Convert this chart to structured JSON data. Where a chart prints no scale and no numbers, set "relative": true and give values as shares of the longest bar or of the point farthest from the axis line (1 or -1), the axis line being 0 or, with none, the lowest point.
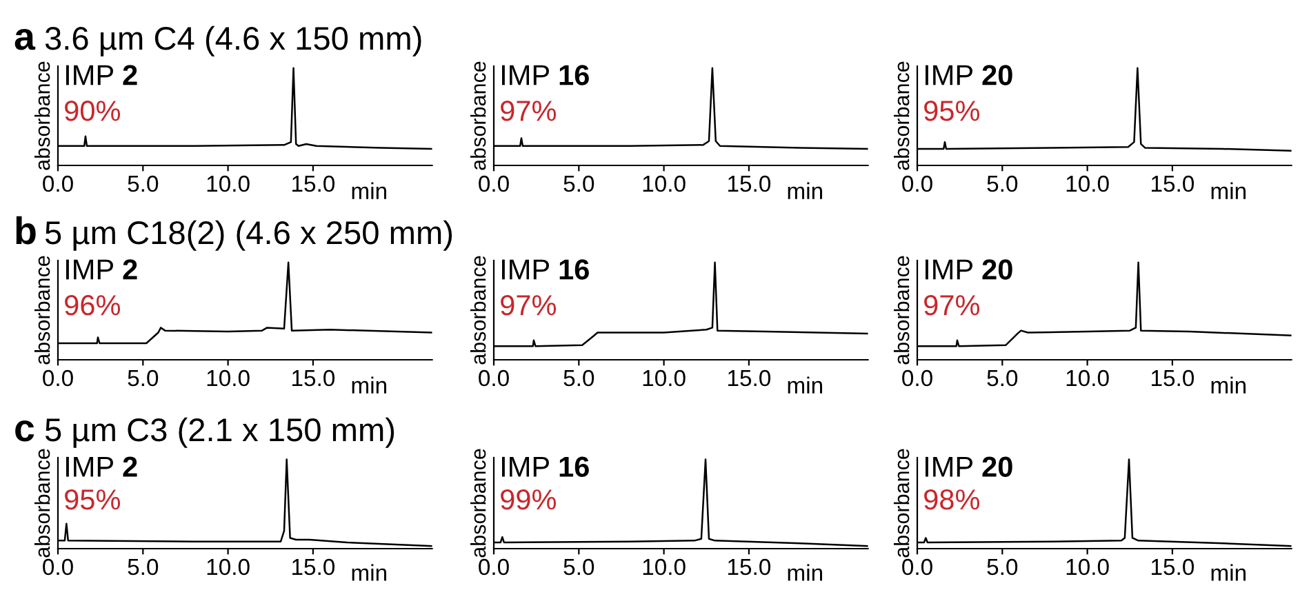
{
  "chart_data": [
    {
      "type": "line",
      "relative": true,
      "title": "3.6 µm C4 (4.6 x 150 mm)",
      "ylabel": "absorbance",
      "xlabel": "min",
      "annotations": [
        "a",
        "IMP 2",
        "90%"
      ],
      "xlim": [
        0,
        22
      ],
      "xticks": [
        {
          "value": 0,
          "label": "0.0"
        },
        {
          "value": 5,
          "label": "5.0"
        },
        {
          "value": 10,
          "label": "10.0"
        },
        {
          "value": 15,
          "label": "15.0"
        }
      ],
      "series": [
        {
          "color": "#000000",
          "x": [
            0,
            1.55,
            1.62,
            1.7,
            8,
            13.3,
            13.7,
            13.85,
            14.0,
            14.15,
            14.6,
            15.2,
            19,
            22
          ],
          "values": [
            0.2,
            0.2,
            0.3,
            0.2,
            0.2,
            0.21,
            0.24,
            1.0,
            0.22,
            0.2,
            0.22,
            0.2,
            0.18,
            0.17
          ]
        }
      ]
    },
    {
      "type": "line",
      "relative": true,
      "ylabel": "absorbance",
      "xlabel": "min",
      "annotations": [
        "IMP 16",
        "97%"
      ],
      "xlim": [
        0,
        22
      ],
      "xticks": [
        {
          "value": 0,
          "label": "0.0"
        },
        {
          "value": 5,
          "label": "5.0"
        },
        {
          "value": 10,
          "label": "10.0"
        },
        {
          "value": 15,
          "label": "15.0"
        }
      ],
      "series": [
        {
          "color": "#000000",
          "x": [
            0,
            1.55,
            1.62,
            1.7,
            8,
            12.3,
            12.65,
            12.85,
            13.05,
            13.3,
            18,
            22
          ],
          "values": [
            0.2,
            0.2,
            0.28,
            0.2,
            0.2,
            0.21,
            0.25,
            1.0,
            0.25,
            0.2,
            0.18,
            0.17
          ]
        }
      ]
    },
    {
      "type": "line",
      "relative": true,
      "ylabel": "absorbance",
      "xlabel": "min",
      "annotations": [
        "IMP 20",
        "95%"
      ],
      "xlim": [
        0,
        22
      ],
      "xticks": [
        {
          "value": 0,
          "label": "0.0"
        },
        {
          "value": 5,
          "label": "5.0"
        },
        {
          "value": 10,
          "label": "10.0"
        },
        {
          "value": 15,
          "label": "15.0"
        }
      ],
      "series": [
        {
          "color": "#000000",
          "x": [
            0,
            1.55,
            1.62,
            1.7,
            8,
            12.4,
            12.75,
            12.95,
            13.15,
            13.4,
            18,
            22
          ],
          "values": [
            0.17,
            0.17,
            0.24,
            0.17,
            0.18,
            0.19,
            0.24,
            1.0,
            0.22,
            0.18,
            0.17,
            0.15
          ]
        }
      ]
    },
    {
      "type": "line",
      "relative": true,
      "title": "5 µm C18(2) (4.6 x 250 mm)",
      "ylabel": "absorbance",
      "xlabel": "min",
      "annotations": [
        "b",
        "IMP 2",
        "96%"
      ],
      "xlim": [
        0,
        22
      ],
      "xticks": [
        {
          "value": 0,
          "label": "0.0"
        },
        {
          "value": 5,
          "label": "5.0"
        },
        {
          "value": 10,
          "label": "10.0"
        },
        {
          "value": 15,
          "label": "15.0"
        }
      ],
      "series": [
        {
          "color": "#000000",
          "x": [
            0,
            2.3,
            2.35,
            2.45,
            5.2,
            5.9,
            6.05,
            6.3,
            10,
            12,
            12.3,
            13.3,
            13.55,
            13.75,
            16,
            22
          ],
          "values": [
            0.17,
            0.17,
            0.23,
            0.17,
            0.17,
            0.28,
            0.33,
            0.3,
            0.29,
            0.3,
            0.33,
            0.32,
            1.0,
            0.3,
            0.31,
            0.28
          ]
        }
      ]
    },
    {
      "type": "line",
      "relative": true,
      "ylabel": "absorbance",
      "xlabel": "min",
      "annotations": [
        "IMP 16",
        "97%"
      ],
      "xlim": [
        0,
        22
      ],
      "xticks": [
        {
          "value": 0,
          "label": "0.0"
        },
        {
          "value": 5,
          "label": "5.0"
        },
        {
          "value": 10,
          "label": "10.0"
        },
        {
          "value": 15,
          "label": "15.0"
        }
      ],
      "series": [
        {
          "color": "#000000",
          "x": [
            0,
            2.3,
            2.35,
            2.45,
            5.2,
            5.9,
            6.1,
            10,
            12.5,
            12.85,
            13.0,
            13.15,
            16,
            22
          ],
          "values": [
            0.14,
            0.14,
            0.2,
            0.14,
            0.15,
            0.25,
            0.28,
            0.28,
            0.31,
            0.33,
            1.0,
            0.3,
            0.29,
            0.27
          ]
        }
      ]
    },
    {
      "type": "line",
      "relative": true,
      "ylabel": "absorbance",
      "xlabel": "min",
      "annotations": [
        "IMP 20",
        "97%"
      ],
      "xlim": [
        0,
        22
      ],
      "xticks": [
        {
          "value": 0,
          "label": "0.0"
        },
        {
          "value": 5,
          "label": "5.0"
        },
        {
          "value": 10,
          "label": "10.0"
        },
        {
          "value": 15,
          "label": "15.0"
        }
      ],
      "series": [
        {
          "color": "#000000",
          "x": [
            0,
            2.3,
            2.35,
            2.45,
            5.2,
            5.9,
            6.1,
            6.5,
            10,
            12.5,
            12.85,
            13.0,
            13.15,
            16,
            22
          ],
          "values": [
            0.14,
            0.14,
            0.2,
            0.14,
            0.15,
            0.27,
            0.3,
            0.28,
            0.29,
            0.3,
            0.33,
            1.0,
            0.3,
            0.29,
            0.25
          ]
        }
      ]
    },
    {
      "type": "line",
      "relative": true,
      "title": "5 µm C3 (2.1 x 150 mm)",
      "ylabel": "absorbance",
      "xlabel": "min",
      "annotations": [
        "c",
        "IMP 2",
        "95%"
      ],
      "xlim": [
        0,
        22
      ],
      "xticks": [
        {
          "value": 0,
          "label": "0.0"
        },
        {
          "value": 5,
          "label": "5.0"
        },
        {
          "value": 10,
          "label": "10.0"
        },
        {
          "value": 15,
          "label": "15.0"
        }
      ],
      "series": [
        {
          "color": "#000000",
          "x": [
            0,
            0.4,
            0.5,
            0.6,
            8,
            13.1,
            13.3,
            13.45,
            13.65,
            14,
            14.8,
            17,
            22
          ],
          "values": [
            0.09,
            0.09,
            0.28,
            0.09,
            0.08,
            0.08,
            0.2,
            1.0,
            0.12,
            0.1,
            0.1,
            0.07,
            0.03
          ]
        }
      ]
    },
    {
      "type": "line",
      "relative": true,
      "ylabel": "absorbance",
      "xlabel": "min",
      "annotations": [
        "IMP 16",
        "99%"
      ],
      "xlim": [
        0,
        22
      ],
      "xticks": [
        {
          "value": 0,
          "label": "0.0"
        },
        {
          "value": 5,
          "label": "5.0"
        },
        {
          "value": 10,
          "label": "10.0"
        },
        {
          "value": 15,
          "label": "15.0"
        }
      ],
      "series": [
        {
          "color": "#000000",
          "x": [
            0,
            0.4,
            0.5,
            0.6,
            8,
            11.8,
            12.2,
            12.45,
            12.65,
            13,
            18,
            22
          ],
          "values": [
            0.07,
            0.07,
            0.13,
            0.07,
            0.08,
            0.09,
            0.11,
            1.0,
            0.11,
            0.09,
            0.06,
            0.03
          ]
        }
      ]
    },
    {
      "type": "line",
      "relative": true,
      "ylabel": "absorbance",
      "xlabel": "min",
      "annotations": [
        "IMP 20",
        "98%"
      ],
      "xlim": [
        0,
        22
      ],
      "xticks": [
        {
          "value": 0,
          "label": "0.0"
        },
        {
          "value": 5,
          "label": "5.0"
        },
        {
          "value": 10,
          "label": "10.0"
        },
        {
          "value": 15,
          "label": "15.0"
        }
      ],
      "series": [
        {
          "color": "#000000",
          "x": [
            0,
            0.4,
            0.5,
            0.6,
            8,
            12,
            12.2,
            12.45,
            12.65,
            13,
            18,
            22
          ],
          "values": [
            0.07,
            0.07,
            0.12,
            0.07,
            0.08,
            0.09,
            0.12,
            1.0,
            0.12,
            0.09,
            0.06,
            0.03
          ]
        }
      ]
    }
  ]
}
